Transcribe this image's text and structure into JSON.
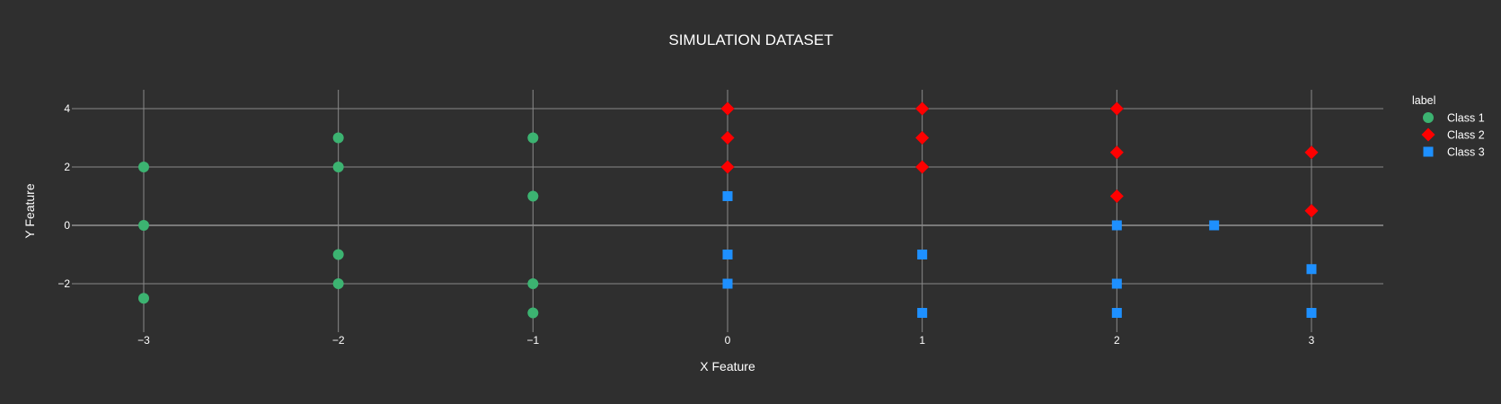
{
  "chart_data": {
    "type": "scatter",
    "title": "SIMULATION DATASET",
    "xlabel": "X Feature",
    "ylabel": "Y Feature",
    "xlim": [
      -3.3,
      3.4
    ],
    "ylim": [
      -3.7,
      4.65
    ],
    "x_ticks": [
      -3,
      -2,
      -1,
      0,
      1,
      2,
      3
    ],
    "y_ticks": [
      -2,
      0,
      2,
      4
    ],
    "grid": true,
    "legend": {
      "title": "label",
      "placement": "right"
    },
    "series": [
      {
        "name": "Class 1",
        "marker": "circle",
        "color": "#3cb371",
        "points": [
          [
            -3,
            2
          ],
          [
            -3,
            0
          ],
          [
            -3,
            -2.5
          ],
          [
            -2,
            3
          ],
          [
            -2,
            2
          ],
          [
            -2,
            -1
          ],
          [
            -2,
            -2
          ],
          [
            -1,
            3
          ],
          [
            -1,
            1
          ],
          [
            -1,
            -2
          ],
          [
            -1,
            -3
          ]
        ]
      },
      {
        "name": "Class 2",
        "marker": "diamond",
        "color": "#ff0000",
        "points": [
          [
            0,
            4
          ],
          [
            0,
            3
          ],
          [
            0,
            2
          ],
          [
            1,
            4
          ],
          [
            1,
            3
          ],
          [
            1,
            2
          ],
          [
            2,
            4
          ],
          [
            2,
            2.5
          ],
          [
            2,
            1
          ],
          [
            3,
            2.5
          ],
          [
            3,
            0.5
          ]
        ]
      },
      {
        "name": "Class 3",
        "marker": "square",
        "color": "#1e90ff",
        "points": [
          [
            0,
            1
          ],
          [
            0,
            -1
          ],
          [
            0,
            -2
          ],
          [
            1,
            -1
          ],
          [
            1,
            -3
          ],
          [
            2,
            0
          ],
          [
            2,
            -2
          ],
          [
            2,
            -3
          ],
          [
            2.5,
            0
          ],
          [
            3,
            -1.5
          ],
          [
            3,
            -3
          ]
        ]
      }
    ]
  }
}
